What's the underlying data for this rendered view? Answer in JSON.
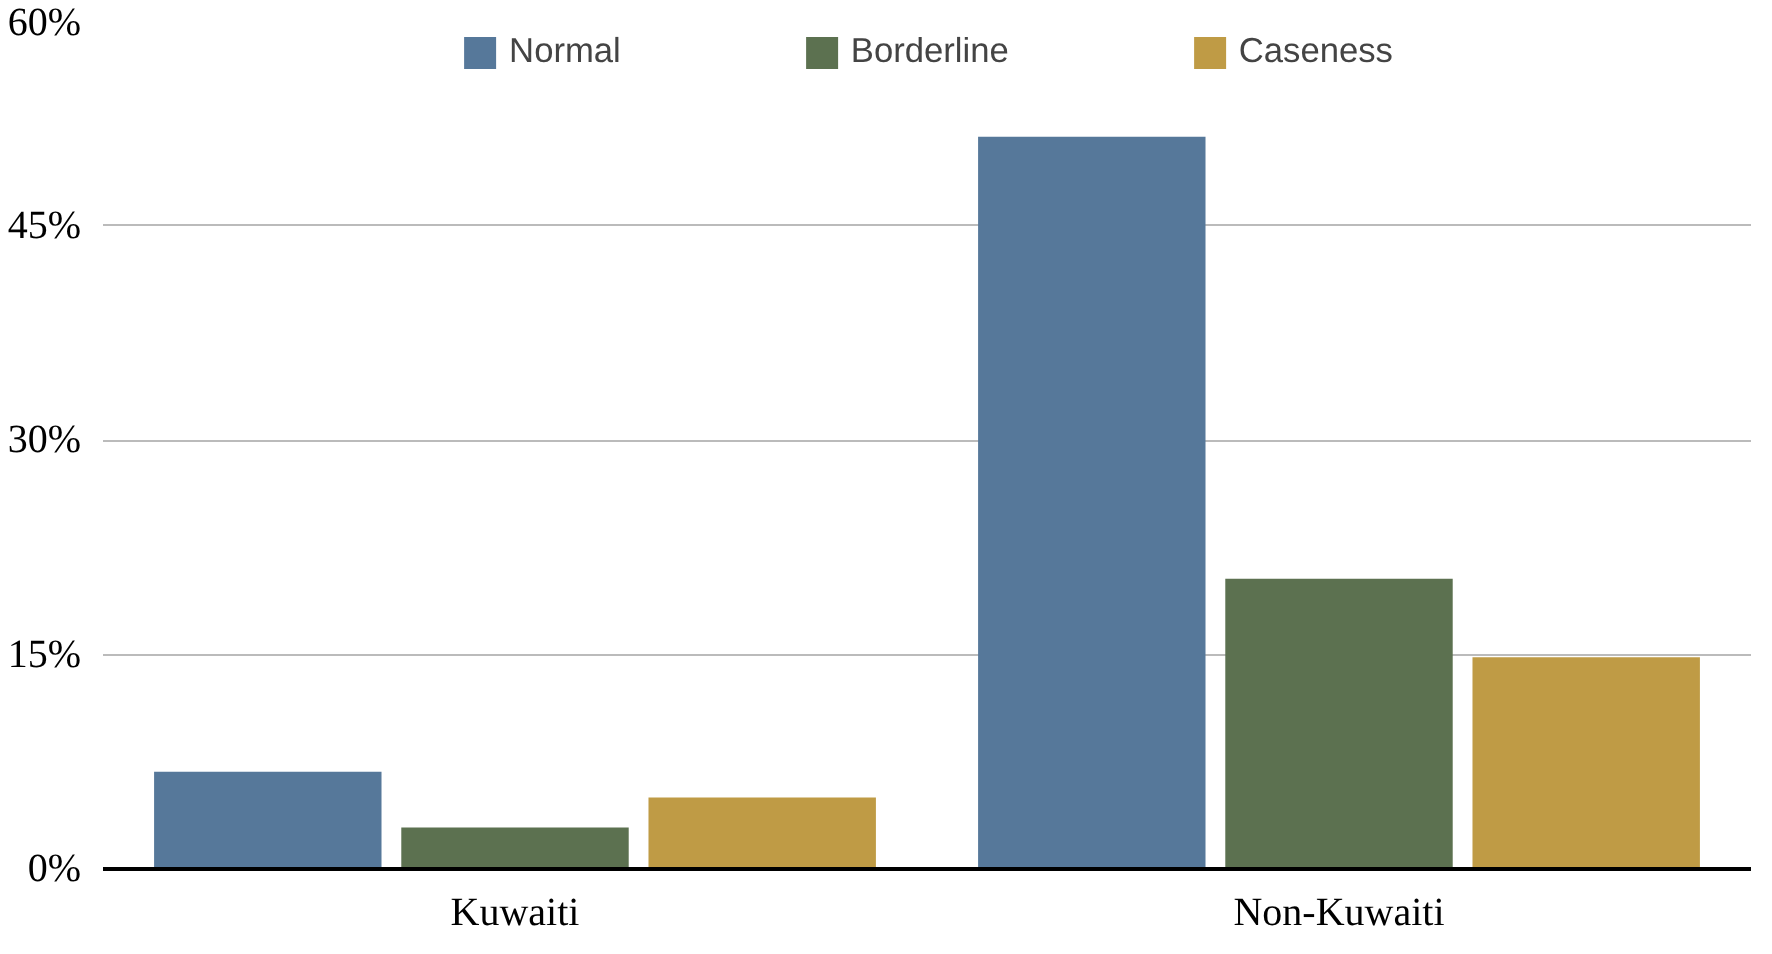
{
  "chart_data": {
    "type": "bar",
    "categories": [
      "Kuwaiti",
      "Non-Kuwaiti"
    ],
    "series": [
      {
        "name": "Normal",
        "color": "#56789a",
        "values": [
          6.8,
          51.2
        ]
      },
      {
        "name": "Borderline",
        "color": "#5c7150",
        "values": [
          2.9,
          20.3
        ]
      },
      {
        "name": "Caseness",
        "color": "#bf9b45",
        "values": [
          5.0,
          14.8
        ]
      }
    ],
    "ylim": [
      0,
      60
    ],
    "yticks": [
      {
        "value": 0,
        "label": "0%"
      },
      {
        "value": 15,
        "label": "15%"
      },
      {
        "value": 30,
        "label": "30%"
      },
      {
        "value": 45,
        "label": "45%"
      },
      {
        "value": 60,
        "label": "60%"
      }
    ],
    "grid": "y",
    "legend": "top"
  }
}
